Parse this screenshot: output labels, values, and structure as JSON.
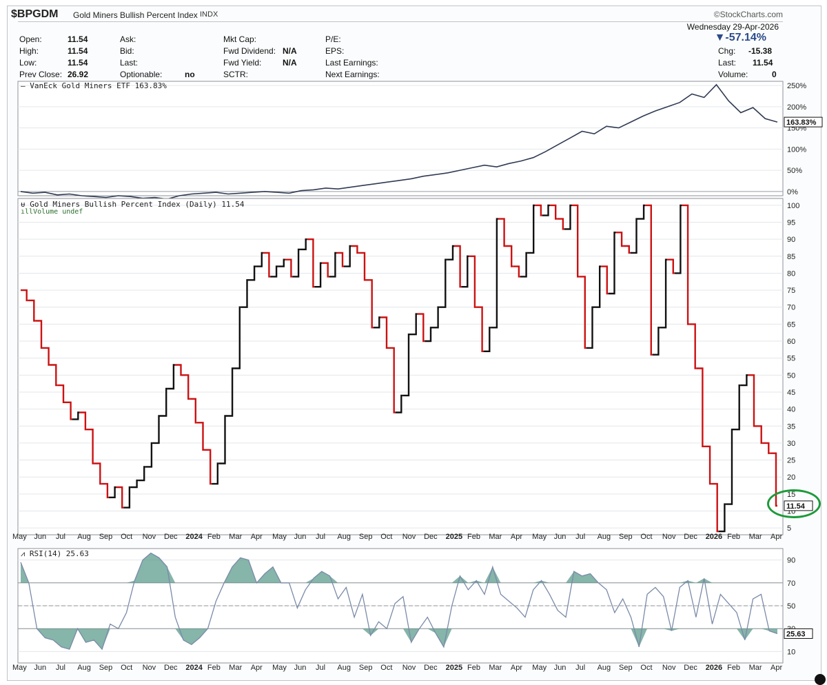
{
  "header": {
    "symbol": "$BPGDM",
    "name": "Gold Miners Bullish Percent Index",
    "exchange": "INDX",
    "brand": "©StockCharts.com",
    "date": "Wednesday  29-Apr-2026",
    "change_pct": "▼-57.14%"
  },
  "quote": {
    "open_label": "Open:",
    "open": "11.54",
    "high_label": "High:",
    "high": "11.54",
    "low_label": "Low:",
    "low": "11.54",
    "prev_label": "Prev Close:",
    "prev": "26.92",
    "ask_label": "Ask:",
    "bid_label": "Bid:",
    "last_label": "Last:",
    "optionable_label": "Optionable:",
    "optionable": "no",
    "mktcap_label": "Mkt Cap:",
    "fwddiv_label": "Fwd Dividend:",
    "fwddiv": "N/A",
    "fwdyield_label": "Fwd Yield:",
    "fwdyield": "N/A",
    "sctr_label": "SCTR:",
    "pe_label": "P/E:",
    "eps_label": "EPS:",
    "lastearn_label": "Last Earnings:",
    "nextearn_label": "Next Earnings:",
    "chg_label": "Chg:",
    "chg": "-15.38",
    "last2_label": "Last:",
    "last2": "11.54",
    "volume_label": "Volume:",
    "volume": "0"
  },
  "panel_labels": {
    "etf": "VanEck Gold Miners ETF 163.83%",
    "main": "Gold Miners Bullish Percent Index (Daily) 11.54",
    "volume": "Volume undef",
    "rsi": "RSI(14) 25.63"
  },
  "colors": {
    "up": "#111111",
    "down": "#cc1111",
    "etf_line": "#2f3a52",
    "rsi_line": "#7a8aa8",
    "rsi_fill": "#5e9c8c",
    "grid": "#e3e6ea",
    "circle": "#1c9a3a"
  },
  "chart_data": [
    {
      "type": "line",
      "title": "VanEck Gold Miners ETF 163.83%",
      "series": [
        {
          "name": "VanEck Gold Miners ETF",
          "values": [
            0,
            -4,
            -2,
            -8,
            -6,
            -10,
            -12,
            -14,
            -10,
            -12,
            -16,
            -14,
            -18,
            -10,
            -6,
            -4,
            -2,
            -6,
            -4,
            -2,
            0,
            -2,
            -4,
            2,
            4,
            8,
            6,
            10,
            14,
            18,
            22,
            26,
            30,
            36,
            40,
            44,
            50,
            56,
            62,
            58,
            66,
            72,
            80,
            94,
            110,
            126,
            142,
            136,
            154,
            150,
            164,
            178,
            190,
            200,
            210,
            230,
            222,
            252,
            214,
            186,
            198,
            172,
            163.83
          ]
        }
      ],
      "ylim": [
        -10,
        260
      ],
      "y_ticks": [
        "250%",
        "200%",
        "150%",
        "100%",
        "50%",
        "0%"
      ],
      "last_value_label": "163.83%"
    },
    {
      "type": "line",
      "title": "Gold Miners Bullish Percent Index (Daily) 11.54",
      "series": [
        {
          "name": "Gold Miners Bullish Percent Index",
          "values": [
            75,
            72,
            66,
            58,
            53,
            47,
            42,
            37,
            39,
            34,
            24,
            18,
            14,
            17,
            11,
            17,
            19,
            23,
            30,
            38,
            46,
            53,
            50,
            43,
            36,
            28,
            18,
            24,
            38,
            52,
            70,
            78,
            82,
            86,
            79,
            82,
            84,
            79,
            87,
            90,
            76,
            83,
            79,
            86,
            82,
            88,
            86,
            78,
            64,
            67,
            58,
            39,
            44,
            62,
            68,
            60,
            64,
            70,
            84,
            88,
            76,
            85,
            70,
            57,
            64,
            96,
            88,
            82,
            79,
            86,
            100,
            97,
            100,
            96,
            93,
            100,
            79,
            58,
            70,
            82,
            74,
            92,
            88,
            86,
            96,
            100,
            56,
            64,
            84,
            80,
            100,
            65,
            52,
            29,
            18,
            4,
            12,
            34,
            47,
            50,
            35,
            30,
            27,
            11.54
          ]
        }
      ],
      "ylim": [
        3,
        102
      ],
      "y_ticks": [
        "100",
        "95",
        "90",
        "85",
        "80",
        "75",
        "70",
        "65",
        "60",
        "55",
        "50",
        "45",
        "40",
        "35",
        "30",
        "25",
        "20",
        "15",
        "10",
        "5"
      ],
      "last_value_label": "11.54"
    },
    {
      "type": "line",
      "title": "RSI(14) 25.63",
      "series": [
        {
          "name": "RSI(14)",
          "values": [
            88,
            70,
            30,
            22,
            20,
            14,
            12,
            30,
            18,
            20,
            12,
            34,
            30,
            44,
            72,
            90,
            96,
            92,
            84,
            40,
            20,
            16,
            22,
            30,
            54,
            70,
            84,
            92,
            90,
            70,
            78,
            84,
            70,
            70,
            48,
            64,
            74,
            80,
            76,
            56,
            66,
            40,
            60,
            24,
            36,
            30,
            52,
            58,
            18,
            30,
            40,
            26,
            14,
            50,
            76,
            64,
            72,
            60,
            84,
            60,
            54,
            48,
            40,
            64,
            72,
            60,
            46,
            40,
            80,
            76,
            78,
            70,
            64,
            44,
            56,
            40,
            14,
            60,
            66,
            58,
            28,
            66,
            72,
            40,
            74,
            34,
            60,
            52,
            44,
            20,
            56,
            60,
            28,
            25.63
          ]
        }
      ],
      "ylim": [
        0,
        100
      ],
      "y_ticks": [
        "90",
        "70",
        "50",
        "30",
        "10"
      ],
      "last_value_label": "25.63"
    }
  ],
  "x_axis_labels": [
    "May",
    "Jun",
    "Jul",
    "Aug",
    "Sep",
    "Oct",
    "Nov",
    "Dec",
    "2024",
    "Feb",
    "Mar",
    "Apr",
    "May",
    "Jun",
    "Jul",
    "Aug",
    "Sep",
    "Oct",
    "Nov",
    "Dec",
    "2025",
    "Feb",
    "Mar",
    "Apr",
    "May",
    "Jun",
    "Jul",
    "Aug",
    "Sep",
    "Oct",
    "Nov",
    "Dec",
    "2026",
    "Feb",
    "Mar",
    "Apr"
  ]
}
